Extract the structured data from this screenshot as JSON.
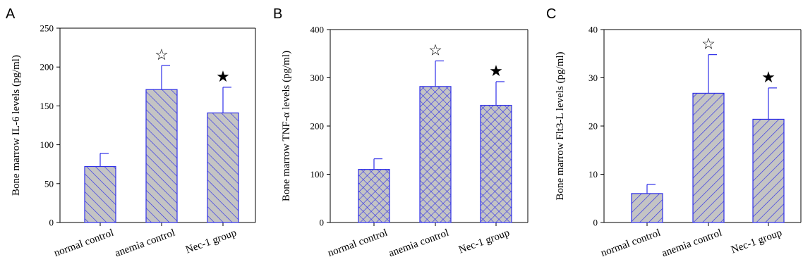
{
  "figure": {
    "colors": {
      "bar_fill": "#c4c4c4",
      "bar_stroke": "#2e2ee8",
      "hatch": "#2e2ee8",
      "axis": "#000000"
    }
  },
  "chart_data": [
    {
      "type": "bar",
      "panel_label": "A",
      "title": "",
      "xlabel": "",
      "ylabel": "Bone marrow  IL-6  levels (pg/ml)",
      "ylim": [
        0,
        250
      ],
      "yticks": [
        0,
        50,
        100,
        150,
        200,
        250
      ],
      "categories": [
        "normal control",
        "anemia control",
        "Nec-1 group"
      ],
      "series": [
        {
          "values": [
            72,
            171,
            141
          ],
          "error": [
            17,
            31,
            33
          ]
        }
      ],
      "markers": [
        "",
        "☆",
        "★"
      ],
      "pattern": "diagonal",
      "grid": false
    },
    {
      "type": "bar",
      "panel_label": "B",
      "title": "",
      "xlabel": "",
      "ylabel": "Bone marrow TNF-α levels (pg/ml)",
      "ylim": [
        0,
        400
      ],
      "yticks": [
        0,
        100,
        200,
        300,
        400
      ],
      "categories": [
        "normal control",
        "anemia control",
        "Nec-1 group"
      ],
      "series": [
        {
          "values": [
            110,
            282,
            243
          ],
          "error": [
            22,
            53,
            49
          ]
        }
      ],
      "markers": [
        "",
        "☆",
        "★"
      ],
      "pattern": "crosshatch",
      "grid": false
    },
    {
      "type": "bar",
      "panel_label": "C",
      "title": "",
      "xlabel": "",
      "ylabel": "Bone marrow Flt3-L levels (pg/ml)",
      "ylim": [
        0,
        40
      ],
      "yticks": [
        0,
        10,
        20,
        30,
        40
      ],
      "categories": [
        "normal control",
        "anemia control",
        "Nec-1 group"
      ],
      "series": [
        {
          "values": [
            6,
            26.8,
            21.4
          ],
          "error": [
            1.9,
            8.0,
            6.5
          ]
        }
      ],
      "markers": [
        "",
        "☆",
        "★"
      ],
      "pattern": "diagonal-reverse",
      "grid": false
    }
  ]
}
